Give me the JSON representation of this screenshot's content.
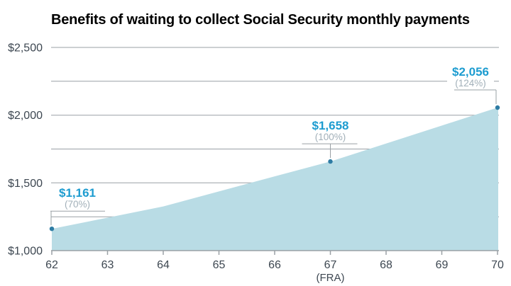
{
  "title": "Benefits of waiting to collect Social Security monthly payments",
  "chart_data": {
    "type": "area",
    "title": "Benefits of waiting to collect Social Security monthly payments",
    "xlabel": "",
    "ylabel": "",
    "x": [
      62,
      63,
      64,
      65,
      66,
      67,
      68,
      69,
      70
    ],
    "values": [
      1161,
      1243,
      1326,
      1437,
      1548,
      1658,
      1790,
      1923,
      2056
    ],
    "xlim": [
      62,
      70
    ],
    "ylim": [
      1000,
      2500
    ],
    "grid": true,
    "legend": false,
    "x_tick_labels": [
      "62",
      "63",
      "64",
      "65",
      "66",
      "67",
      "68",
      "69",
      "70"
    ],
    "fra_note": {
      "age": 67,
      "label": "(FRA)"
    },
    "y_tick_labels": [
      {
        "value": 1000,
        "label": "$1,000"
      },
      {
        "value": 1500,
        "label": "$1,500"
      },
      {
        "value": 2000,
        "label": "$2,000"
      },
      {
        "value": 2500,
        "label": "$2,500"
      }
    ],
    "gridline_values": [
      1250,
      1500,
      1750,
      2000,
      2250,
      2500
    ],
    "annotations": [
      {
        "x": 62,
        "y": 1161,
        "value_label": "$1,161",
        "pct_label": "(70%)"
      },
      {
        "x": 67,
        "y": 1658,
        "value_label": "$1,658",
        "pct_label": "(100%)"
      },
      {
        "x": 70,
        "y": 2056,
        "value_label": "$2,056",
        "pct_label": "(124%)"
      }
    ],
    "colors": {
      "area_fill": "#b9dce5",
      "point": "#2e7ca4",
      "annotation_value": "#1d9cd0",
      "annotation_pct": "#a2b0b9",
      "gridline": "#9aa0a5",
      "axis_line": "#9aa0a5",
      "axis_text": "#3d4751",
      "title_text": "#17191c",
      "background": "#ffffff"
    }
  }
}
